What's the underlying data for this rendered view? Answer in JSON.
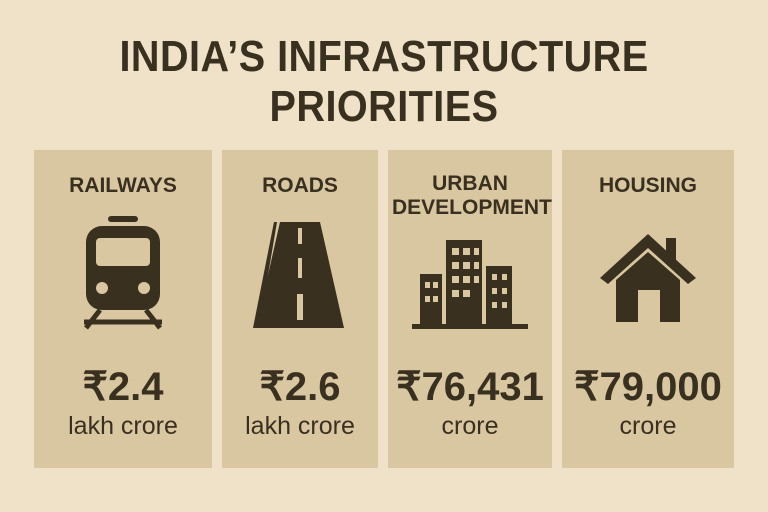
{
  "header": {
    "title_lines": [
      "INDIA’S INFRASTRUCTURE",
      "PRIORITIES"
    ]
  },
  "cards": [
    {
      "label": "RAILWAYS",
      "amount": "₹2.4",
      "unit": "lakh crore"
    },
    {
      "label": "ROADS",
      "amount": "₹2.6",
      "unit": "lakh crore"
    },
    {
      "label": "URBAN DEVELOPMENT",
      "amount": "₹76,431",
      "unit": "crore"
    },
    {
      "label": "HOUSING",
      "amount": "₹79,000",
      "unit": "crore"
    }
  ]
}
